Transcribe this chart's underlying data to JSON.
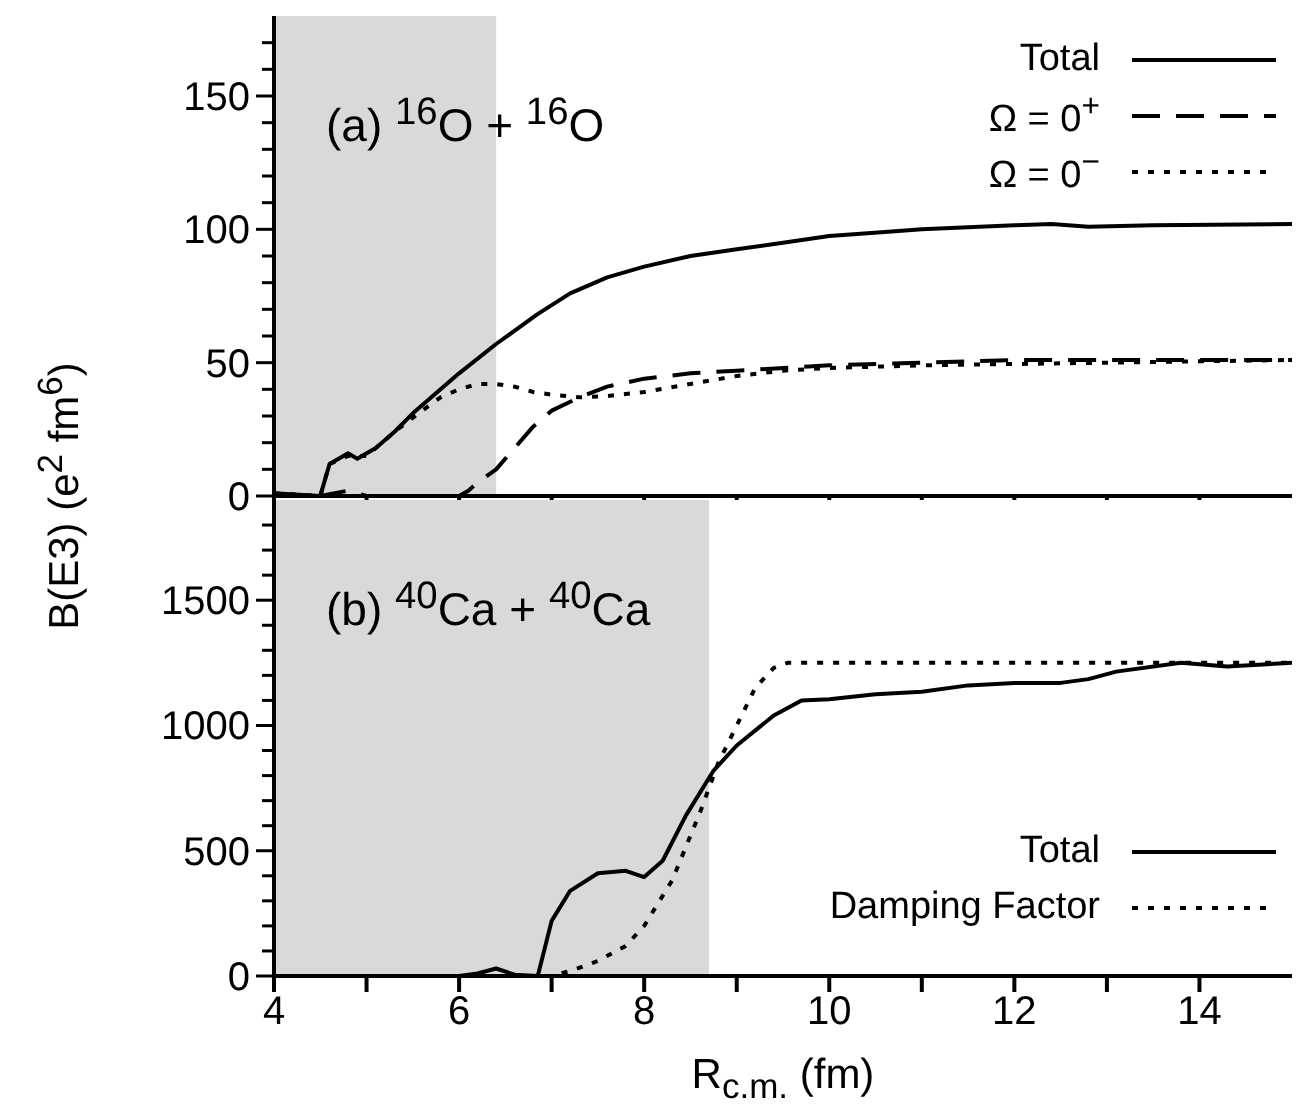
{
  "chart_data": [
    {
      "type": "line",
      "ylabel": "B(E3) (e$^{2}$ fm$^{6}$)",
      "annotations": [
        "(a) $^{16}$O + $^{16}$O"
      ],
      "xlim": [
        4,
        15
      ],
      "xticks": [
        4,
        {
          "value": 5,
          "label": null
        },
        6,
        {
          "value": 7,
          "label": null
        },
        8,
        {
          "value": 9,
          "label": null
        },
        10,
        {
          "value": 11,
          "label": null
        },
        12,
        {
          "value": 13,
          "label": null
        },
        14
      ],
      "ylim": [
        0,
        180
      ],
      "yticks": [
        0,
        {
          "value": 10,
          "label": null
        },
        {
          "value": 20,
          "label": null
        },
        {
          "value": 30,
          "label": null
        },
        {
          "value": 40,
          "label": null
        },
        50,
        {
          "value": 60,
          "label": null
        },
        {
          "value": 70,
          "label": null
        },
        {
          "value": 80,
          "label": null
        },
        {
          "value": 90,
          "label": null
        },
        100,
        {
          "value": 110,
          "label": null
        },
        {
          "value": 120,
          "label": null
        },
        {
          "value": 130,
          "label": null
        },
        {
          "value": 140,
          "label": null
        },
        150,
        {
          "value": 160,
          "label": null
        },
        {
          "value": 170,
          "label": null
        }
      ],
      "tick_labels": "y",
      "legend": "top right",
      "bands": [
        {
          "axis": "x",
          "from": 4,
          "to": 6.4,
          "color": "#d9d9d9"
        }
      ],
      "series": [
        {
          "name": "Total",
          "color": "#000000",
          "line_style": "solid",
          "x": [
            4,
            4.5,
            4.6,
            4.8,
            4.9,
            5.1,
            5.3,
            5.5,
            5.8,
            6.0,
            6.4,
            6.84,
            7.2,
            7.6,
            8,
            8.5,
            9,
            9.5,
            10,
            10.6,
            11,
            12,
            12.4,
            12.8,
            13.5,
            15
          ],
          "values": [
            1,
            0,
            12,
            16,
            14,
            18,
            24,
            31,
            40,
            46,
            57,
            68,
            76,
            82,
            86,
            90,
            92.5,
            95,
            97.5,
            99,
            100,
            101.5,
            102,
            101,
            101.5,
            102
          ]
        },
        {
          "name": "Ω = 0$^{+}$",
          "color": "#000000",
          "line_style": "dashed",
          "x": [
            4,
            4.5,
            4.8,
            5,
            6,
            6.1,
            6.2,
            6.4,
            6.6,
            6.8,
            7.0,
            7.3,
            7.6,
            8,
            8.5,
            9,
            10,
            11,
            12,
            13,
            15
          ],
          "values": [
            0,
            0,
            2,
            0,
            0,
            2,
            5,
            10,
            18,
            26,
            32,
            37,
            41,
            44,
            46,
            47,
            49,
            50,
            51,
            51,
            51
          ]
        },
        {
          "name": "Ω = 0$^{−}$",
          "color": "#000000",
          "line_style": "dotted",
          "x": [
            4,
            4.5,
            4.6,
            4.8,
            5.0,
            5.3,
            5.6,
            5.8,
            6.0,
            6.2,
            6.4,
            6.6,
            6.8,
            7.0,
            7.3,
            7.6,
            8,
            8.5,
            9,
            9.5,
            10,
            11,
            12,
            13,
            14,
            15
          ],
          "values": [
            1,
            0,
            12,
            15,
            15,
            24,
            32,
            37,
            40,
            42,
            42,
            41,
            39,
            38,
            37,
            37.5,
            39,
            42,
            45,
            47,
            48,
            49,
            49.5,
            50,
            50.5,
            51
          ]
        }
      ]
    },
    {
      "type": "line",
      "xlabel": "R$_{c.m.}$ (fm)",
      "annotations": [
        "(b) $^{40}$Ca + $^{40}$Ca"
      ],
      "xlim": [
        4,
        15
      ],
      "xticks": [
        4,
        {
          "value": 5,
          "label": null
        },
        6,
        {
          "value": 7,
          "label": null
        },
        8,
        {
          "value": 9,
          "label": null
        },
        10,
        {
          "value": 11,
          "label": null
        },
        12,
        {
          "value": 13,
          "label": null
        },
        14
      ],
      "ylim": [
        0,
        1900
      ],
      "yticks": [
        0,
        {
          "value": 100,
          "label": null
        },
        {
          "value": 200,
          "label": null
        },
        {
          "value": 300,
          "label": null
        },
        {
          "value": 400,
          "label": null
        },
        500,
        {
          "value": 600,
          "label": null
        },
        {
          "value": 700,
          "label": null
        },
        {
          "value": 800,
          "label": null
        },
        {
          "value": 900,
          "label": null
        },
        1000,
        {
          "value": 1100,
          "label": null
        },
        {
          "value": 1200,
          "label": null
        },
        {
          "value": 1300,
          "label": null
        },
        {
          "value": 1400,
          "label": null
        },
        1500,
        {
          "value": 1600,
          "label": null
        },
        {
          "value": 1700,
          "label": null
        },
        {
          "value": 1800,
          "label": null
        }
      ],
      "legend": "bottom right",
      "bands": [
        {
          "axis": "x",
          "from": 4,
          "to": 8.7,
          "color": "#d9d9d9"
        }
      ],
      "series": [
        {
          "name": "Total",
          "color": "#000000",
          "line_style": "solid",
          "x": [
            4,
            6,
            6.2,
            6.4,
            6.6,
            6.85,
            7.0,
            7.2,
            7.5,
            7.8,
            8.0,
            8.2,
            8.45,
            8.75,
            9.0,
            9.4,
            9.7,
            10,
            10.5,
            11,
            11.5,
            12,
            12.5,
            12.8,
            13.1,
            13.8,
            14.3,
            15
          ],
          "values": [
            0,
            0,
            10,
            30,
            5,
            0,
            220,
            340,
            410,
            420,
            395,
            460,
            640,
            820,
            920,
            1040,
            1100,
            1105,
            1125,
            1135,
            1160,
            1170,
            1170,
            1185,
            1215,
            1250,
            1235,
            1250
          ]
        },
        {
          "name": "Damping Factor",
          "color": "#000000",
          "line_style": "dotted",
          "x": [
            4,
            7.0,
            7.2,
            7.5,
            7.8,
            8.0,
            8.3,
            8.6,
            8.8,
            9.0,
            9.2,
            9.4,
            9.55,
            15
          ],
          "values": [
            0,
            0,
            20,
            60,
            120,
            200,
            380,
            650,
            850,
            1000,
            1150,
            1230,
            1250,
            1250
          ]
        }
      ]
    }
  ]
}
